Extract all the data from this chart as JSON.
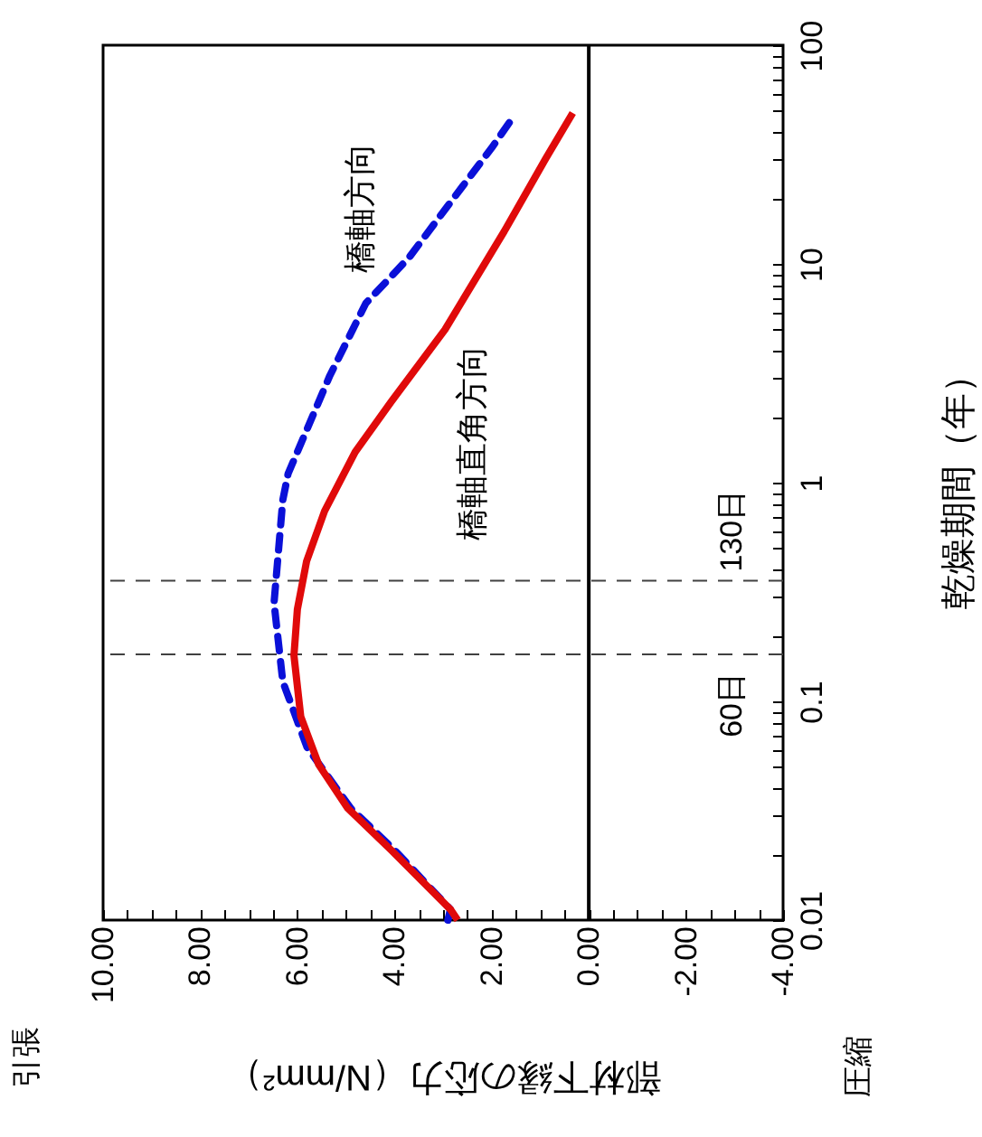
{
  "chart_data": {
    "type": "line",
    "xlabel": "部材下縁の応力（N/mm²）",
    "ylabel": "乾燥期間（年）",
    "annotations": [
      "引張",
      "圧縮"
    ],
    "log": "y",
    "ylim": [
      0.01,
      100
    ],
    "yticks": [
      0.01,
      {
        "value": 0.02,
        "label": null
      },
      {
        "value": 0.03,
        "label": null
      },
      {
        "value": 0.04,
        "label": null
      },
      {
        "value": 0.05,
        "label": null
      },
      {
        "value": 0.06,
        "label": null
      },
      {
        "value": 0.07,
        "label": null
      },
      {
        "value": 0.08,
        "label": null
      },
      {
        "value": 0.09,
        "label": null
      },
      0.1,
      {
        "value": 0.2,
        "label": null
      },
      {
        "value": 0.3,
        "label": null
      },
      {
        "value": 0.4,
        "label": null
      },
      {
        "value": 0.5,
        "label": null
      },
      {
        "value": 0.6,
        "label": null
      },
      {
        "value": 0.7,
        "label": null
      },
      {
        "value": 0.8,
        "label": null
      },
      {
        "value": 0.9,
        "label": null
      },
      1,
      {
        "value": 2,
        "label": null
      },
      {
        "value": 3,
        "label": null
      },
      {
        "value": 4,
        "label": null
      },
      {
        "value": 5,
        "label": null
      },
      {
        "value": 6,
        "label": null
      },
      {
        "value": 7,
        "label": null
      },
      {
        "value": 8,
        "label": null
      },
      {
        "value": 9,
        "label": null
      },
      10,
      {
        "value": 20,
        "label": null
      },
      {
        "value": 30,
        "label": null
      },
      {
        "value": 40,
        "label": null
      },
      {
        "value": 50,
        "label": null
      },
      {
        "value": 60,
        "label": null
      },
      {
        "value": 70,
        "label": null
      },
      {
        "value": 80,
        "label": null
      },
      {
        "value": 90,
        "label": null
      },
      100
    ],
    "xlim": [
      10,
      -4
    ],
    "xticks": [
      {
        "value": 10,
        "label": "10.00"
      },
      {
        "value": 9.5,
        "label": null
      },
      {
        "value": 9,
        "label": null
      },
      {
        "value": 8.5,
        "label": null
      },
      {
        "value": 8,
        "label": "8.00"
      },
      {
        "value": 7.5,
        "label": null
      },
      {
        "value": 7,
        "label": null
      },
      {
        "value": 6.5,
        "label": null
      },
      {
        "value": 6,
        "label": "6.00"
      },
      {
        "value": 5.5,
        "label": null
      },
      {
        "value": 5,
        "label": null
      },
      {
        "value": 4.5,
        "label": null
      },
      {
        "value": 4,
        "label": "4.00"
      },
      {
        "value": 3.5,
        "label": null
      },
      {
        "value": 3,
        "label": null
      },
      {
        "value": 2.5,
        "label": null
      },
      {
        "value": 2,
        "label": "2.00"
      },
      {
        "value": 1.5,
        "label": null
      },
      {
        "value": 1,
        "label": null
      },
      {
        "value": 0.5,
        "label": null
      },
      {
        "value": 0,
        "label": "0.00"
      },
      {
        "value": -0.5,
        "label": null
      },
      {
        "value": -1,
        "label": null
      },
      {
        "value": -1.5,
        "label": null
      },
      {
        "value": -2,
        "label": "-2.00"
      },
      {
        "value": -2.5,
        "label": null
      },
      {
        "value": -3,
        "label": null
      },
      {
        "value": -3.5,
        "label": null
      },
      {
        "value": -4,
        "label": "-4.00"
      }
    ],
    "grid": false,
    "series": [
      {
        "name": "橋軸方向",
        "color": "#0a10d8",
        "line_style": "dashed",
        "values": [
          0.01,
          0.0112,
          0.0209,
          0.0324,
          0.0617,
          0.123,
          0.282,
          0.832,
          1.1,
          3.09,
          6.61,
          10.7,
          19.1,
          33.9,
          46.8
        ],
        "x": [
          2.9,
          2.85,
          4.0,
          4.9,
          5.8,
          6.3,
          6.48,
          6.3,
          6.19,
          5.33,
          4.59,
          3.7,
          2.85,
          2.0,
          1.56
        ]
      },
      {
        "name": "橋軸直角方向",
        "color": "#e00a0a",
        "line_style": "solid",
        "values": [
          0.01,
          0.0112,
          0.0209,
          0.0324,
          0.0513,
          0.0851,
          0.162,
          0.263,
          0.437,
          0.741,
          1.38,
          2.34,
          5.01,
          14.1,
          30.2,
          49
        ],
        "x": [
          2.7,
          2.85,
          4.07,
          4.96,
          5.56,
          5.93,
          6.07,
          6.0,
          5.81,
          5.44,
          4.81,
          4.07,
          2.96,
          1.74,
          0.89,
          0.33
        ]
      }
    ],
    "ref_lines": [
      {
        "axis": "x",
        "value": 0,
        "label": null,
        "color": "#000000",
        "line_style": "solid"
      },
      {
        "axis": "y",
        "value": 0.164,
        "label": "60日",
        "color": "#404040",
        "line_style": "dashed"
      },
      {
        "axis": "y",
        "value": 0.356,
        "label": "130日",
        "color": "#404040",
        "line_style": "dashed"
      }
    ]
  }
}
